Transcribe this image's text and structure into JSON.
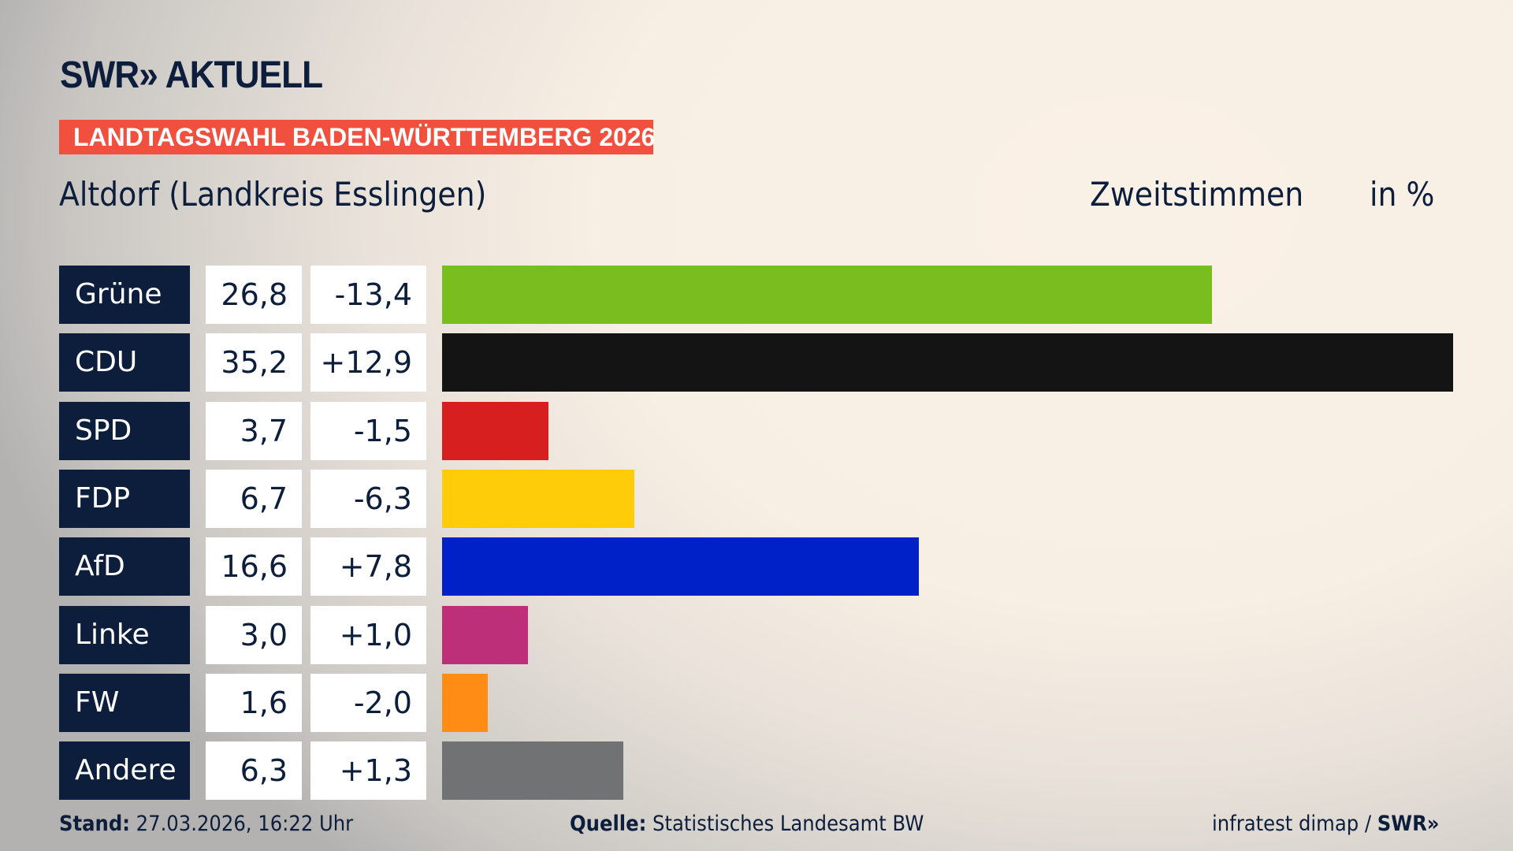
{
  "header": {
    "logo_text": "SWR» AKTUELL",
    "banner": "LANDTAGSWAHL BADEN-WÜRTTEMBERG 2026",
    "subtitle": "Altdorf (Landkreis Esslingen)",
    "measure": "Zweitstimmen",
    "unit": "in %"
  },
  "chart_data": {
    "type": "bar",
    "orientation": "horizontal",
    "categories": [
      "Grüne",
      "CDU",
      "SPD",
      "FDP",
      "AfD",
      "Linke",
      "FW",
      "Andere"
    ],
    "values": [
      26.8,
      35.2,
      3.7,
      6.7,
      16.6,
      3.0,
      1.6,
      6.3
    ],
    "value_labels": [
      "26,8",
      "35,2",
      "3,7",
      "6,7",
      "16,6",
      "3,0",
      "1,6",
      "6,3"
    ],
    "diff_labels": [
      "-13,4",
      "+12,9",
      "-1,5",
      "-6,3",
      "+7,8",
      "+1,0",
      "-2,0",
      "+1,3"
    ],
    "colors": [
      "#7abd1f",
      "#141414",
      "#d81f1f",
      "#ffcc0a",
      "#0021c8",
      "#be2f79",
      "#ff8c14",
      "#717273"
    ],
    "title": "Zweitstimmen",
    "unit": "in %",
    "xlim": [
      0,
      35.2
    ]
  },
  "footer": {
    "stand_label": "Stand:",
    "stand_value": "27.03.2026, 16:22 Uhr",
    "source_label": "Quelle:",
    "source_value": "Statistisches Landesamt BW",
    "credit": "infratest dimap / ",
    "credit_logo": "SWR»"
  }
}
